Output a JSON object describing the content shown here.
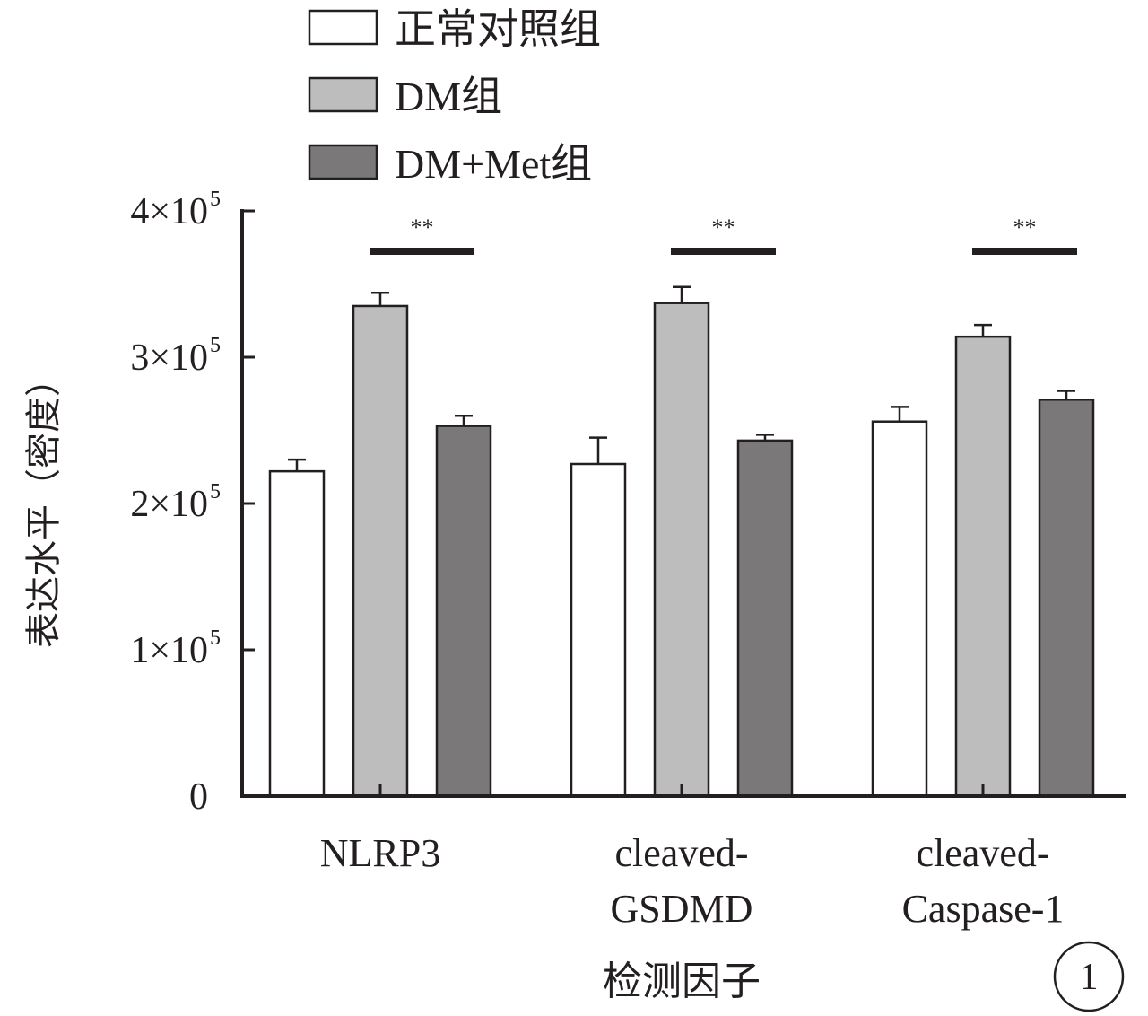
{
  "chart_data": {
    "type": "bar",
    "categories": [
      "NLRP3",
      "cleaved-GSDMD",
      "cleaved-Caspase-1"
    ],
    "category_label_lines": [
      [
        "NLRP3"
      ],
      [
        "cleaved-",
        "GSDMD"
      ],
      [
        "cleaved-",
        "Caspase-1"
      ]
    ],
    "series": [
      {
        "name": "正常对照组",
        "values": [
          222000,
          227000,
          256000
        ],
        "errors": [
          8000,
          18000,
          10000
        ],
        "color": "#ffffff"
      },
      {
        "name": "DM组",
        "values": [
          335000,
          337000,
          314000
        ],
        "errors": [
          9000,
          11000,
          8000
        ],
        "color": "#bdbdbd"
      },
      {
        "name": "DM+Met组",
        "values": [
          253000,
          243000,
          271000
        ],
        "errors": [
          7000,
          4000,
          6000
        ],
        "color": "#7a7879"
      }
    ],
    "xlabel": "检测因子",
    "ylabel": "表达水平（密度）",
    "ylim": [
      0,
      400000
    ],
    "yticks": [
      {
        "value": 0,
        "label": "0"
      },
      {
        "value": 100000,
        "label": "1×10",
        "exp": "5"
      },
      {
        "value": 200000,
        "label": "2×10",
        "exp": "5"
      },
      {
        "value": 300000,
        "label": "3×10",
        "exp": "5"
      },
      {
        "value": 400000,
        "label": "4×10",
        "exp": "5"
      }
    ],
    "significance": [
      {
        "category": 0,
        "label": "**"
      },
      {
        "category": 1,
        "label": "**"
      },
      {
        "category": 2,
        "label": "**"
      }
    ],
    "legend_placement": "top",
    "grid": false,
    "panel_label": "1"
  }
}
